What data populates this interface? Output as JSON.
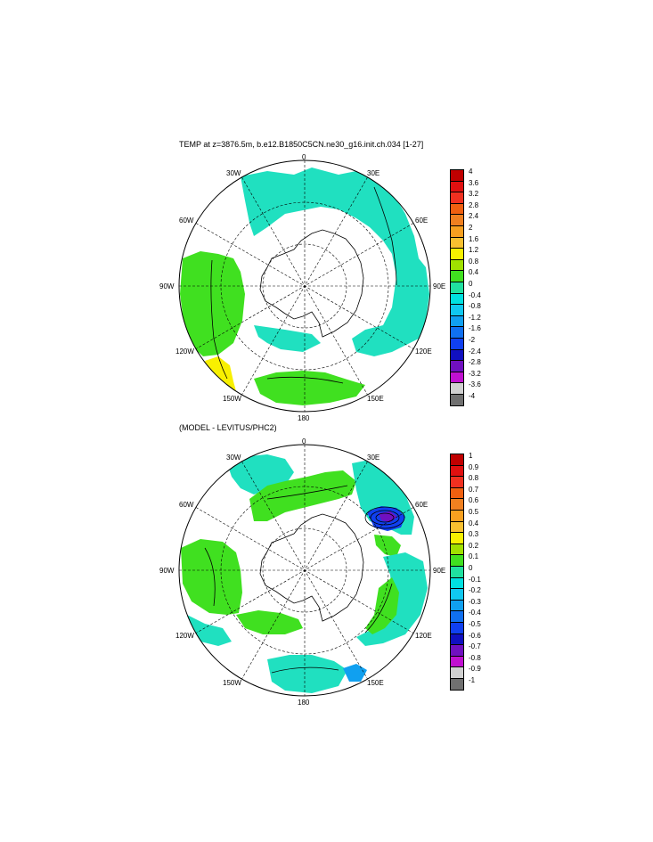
{
  "maps": [
    {
      "title": "TEMP at z=3876.5m, b.e12.B1850C5CN.ne30_g16.init.ch.034 [1-27]",
      "labels": {
        "top": "0",
        "bottom": "180",
        "left": "90W",
        "right": "90E",
        "ul1": "30W",
        "ul2": "60W",
        "ur1": "30E",
        "ur2": "60E",
        "ll1": "120W",
        "ll2": "150W",
        "lr1": "120E",
        "lr2": "150E"
      },
      "colorbar": {
        "labels": [
          "4",
          "3.6",
          "3.2",
          "2.8",
          "2.4",
          "2",
          "1.6",
          "1.2",
          "0.8",
          "0.4",
          "0",
          "-0.4",
          "-0.8",
          "-1.2",
          "-1.6",
          "-2",
          "-2.4",
          "-2.8",
          "-3.2",
          "-3.6",
          "-4"
        ],
        "colors": [
          "#c00000",
          "#e01010",
          "#f03020",
          "#f06010",
          "#f08020",
          "#f8a020",
          "#f8c030",
          "#f8f000",
          "#a0e000",
          "#40e020",
          "#20e0a0",
          "#00e0e0",
          "#10c8f0",
          "#10a0f0",
          "#1070f0",
          "#1040f0",
          "#1010c0",
          "#7010c0",
          "#c010d0",
          "#d0d0d0",
          "#707070"
        ]
      },
      "fields": [
        {
          "color": "#20e0c0",
          "name": "antarctic-basin-west"
        },
        {
          "color": "#40e020",
          "name": "southeast-pacific-basin"
        },
        {
          "color": "#f8f000",
          "name": "south-pacific-warm-patch"
        }
      ]
    },
    {
      "title": "(MODEL - LEVITUS/PHC2)",
      "labels": {
        "top": "0",
        "bottom": "180",
        "left": "90W",
        "right": "90E",
        "ul1": "30W",
        "ul2": "60W",
        "ur1": "30E",
        "ur2": "60E",
        "ll1": "120W",
        "ll2": "150W",
        "lr1": "120E",
        "lr2": "150E"
      },
      "colorbar": {
        "labels": [
          "1",
          "0.9",
          "0.8",
          "0.7",
          "0.6",
          "0.5",
          "0.4",
          "0.3",
          "0.2",
          "0.1",
          "0",
          "-0.1",
          "-0.2",
          "-0.3",
          "-0.4",
          "-0.5",
          "-0.6",
          "-0.7",
          "-0.8",
          "-0.9",
          "-1"
        ],
        "colors": [
          "#c00000",
          "#e01010",
          "#f03020",
          "#f06010",
          "#f08020",
          "#f8a020",
          "#f8c030",
          "#f8f000",
          "#a0e000",
          "#40e020",
          "#20e0a0",
          "#00e0e0",
          "#10c8f0",
          "#10a0f0",
          "#1070f0",
          "#1040f0",
          "#1010c0",
          "#7010c0",
          "#c010d0",
          "#d0d0d0",
          "#707070"
        ]
      }
    }
  ]
}
